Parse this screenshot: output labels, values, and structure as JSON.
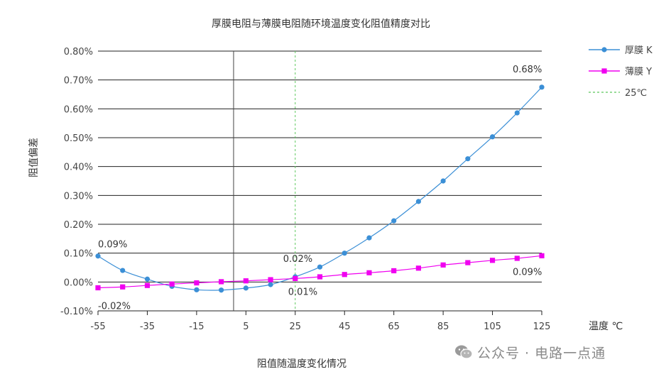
{
  "chart_data": {
    "type": "line",
    "title": "厚膜电阻与薄膜电阻随环境温度变化阻值精度对比",
    "xlabel": "温度 ℃",
    "ylabel": "阻值偏差",
    "caption": "阻值随温度变化情况",
    "x_ticks": [
      "-55",
      "-35",
      "-15",
      "5",
      "25",
      "45",
      "65",
      "85",
      "105",
      "125"
    ],
    "y_ticks": [
      "-0.10%",
      "0.00%",
      "0.10%",
      "0.20%",
      "0.30%",
      "0.40%",
      "0.50%",
      "0.60%",
      "0.70%",
      "0.80%"
    ],
    "xlim": [
      -55,
      125
    ],
    "ylim": [
      -0.1,
      0.8
    ],
    "y_unit": "%",
    "grid": "horizontal",
    "legend": "right",
    "series": [
      {
        "name": "厚膜 K",
        "color": "#3b8fd6",
        "marker": "circle",
        "x": [
          -55,
          -45,
          -35,
          -25,
          -15,
          -5,
          5,
          15,
          25,
          35,
          45,
          55,
          65,
          75,
          85,
          95,
          105,
          115,
          125
        ],
        "values": [
          0.09,
          0.04,
          0.01,
          -0.015,
          -0.027,
          -0.028,
          -0.021,
          -0.009,
          0.018,
          0.052,
          0.1,
          0.153,
          0.212,
          0.279,
          0.35,
          0.427,
          0.503,
          0.586,
          0.675
        ]
      },
      {
        "name": "薄膜 Y",
        "color": "#f000f0",
        "marker": "square",
        "x": [
          -55,
          -45,
          -35,
          -25,
          -15,
          -5,
          5,
          15,
          25,
          35,
          45,
          55,
          65,
          75,
          85,
          95,
          105,
          115,
          125
        ],
        "values": [
          -0.02,
          -0.017,
          -0.012,
          -0.007,
          -0.003,
          0.001,
          0.004,
          0.008,
          0.012,
          0.018,
          0.026,
          0.032,
          0.039,
          0.048,
          0.059,
          0.067,
          0.075,
          0.082,
          0.091
        ]
      }
    ],
    "reference_line": {
      "name": "25℃",
      "x": 25,
      "color": "#5cc85c",
      "style": "dashed"
    },
    "zero_line_x": 0,
    "annotations": [
      {
        "text": "0.09%",
        "x": -55,
        "y": 0.09
      },
      {
        "text": "-0.02%",
        "x": -55,
        "y": -0.02
      },
      {
        "text": "0.02%",
        "x": 25,
        "y": 0.018
      },
      {
        "text": "0.01%",
        "x": 25,
        "y": 0.012
      },
      {
        "text": "0.68%",
        "x": 125,
        "y": 0.68
      },
      {
        "text": "0.09%",
        "x": 125,
        "y": 0.09
      }
    ]
  },
  "watermark": {
    "text": "公众号 · 电路一点通",
    "icon": "wechat-icon"
  }
}
